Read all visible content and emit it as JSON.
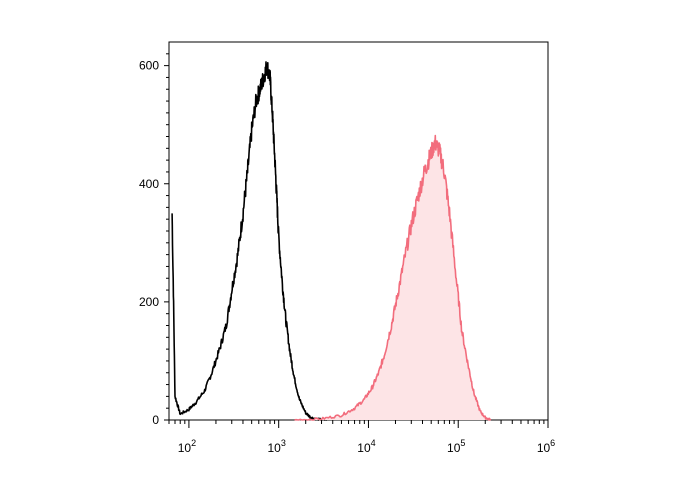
{
  "chart_data": {
    "type": "area",
    "title": "",
    "xlabel": "",
    "ylabel": "",
    "x_scale": "log",
    "xlim": [
      60,
      1000000
    ],
    "ylim": [
      0,
      640
    ],
    "grid": false,
    "legend": "none",
    "x_ticks": [
      {
        "value": 100,
        "base": "10",
        "exp": "2"
      },
      {
        "value": 1000,
        "base": "10",
        "exp": "3"
      },
      {
        "value": 10000,
        "base": "10",
        "exp": "4"
      },
      {
        "value": 100000,
        "base": "10",
        "exp": "5"
      },
      {
        "value": 1000000,
        "base": "10",
        "exp": "6"
      }
    ],
    "y_ticks": [
      {
        "value": 0,
        "label": "0"
      },
      {
        "value": 200,
        "label": "200"
      },
      {
        "value": 400,
        "label": "400"
      },
      {
        "value": 600,
        "label": "600"
      }
    ],
    "series": [
      {
        "color": "#000000",
        "fill": "none",
        "x": [
          65,
          70,
          80,
          100,
          120,
          150,
          180,
          220,
          260,
          300,
          350,
          400,
          450,
          500,
          560,
          620,
          680,
          740,
          800,
          850,
          900,
          950,
          1000,
          1100,
          1200,
          1350,
          1500,
          1700,
          2000,
          2300,
          2800,
          3500
        ],
        "y": [
          350,
          40,
          10,
          18,
          30,
          50,
          80,
          120,
          160,
          220,
          280,
          350,
          420,
          490,
          540,
          560,
          580,
          600,
          580,
          520,
          450,
          380,
          310,
          230,
          170,
          110,
          70,
          35,
          12,
          4,
          1,
          0
        ]
      },
      {
        "color": "#f26d7d",
        "fill": "#fde4e6",
        "x": [
          1500,
          3000,
          5000,
          7000,
          9000,
          11000,
          13000,
          15000,
          18000,
          21000,
          25000,
          30000,
          36000,
          42000,
          48000,
          55000,
          62000,
          70000,
          80000,
          95000,
          110000,
          130000,
          150000,
          175000,
          200000,
          230000
        ],
        "y": [
          0,
          2,
          8,
          20,
          35,
          55,
          80,
          110,
          160,
          210,
          270,
          330,
          380,
          420,
          445,
          470,
          455,
          420,
          350,
          240,
          150,
          90,
          45,
          15,
          4,
          0
        ]
      }
    ]
  }
}
